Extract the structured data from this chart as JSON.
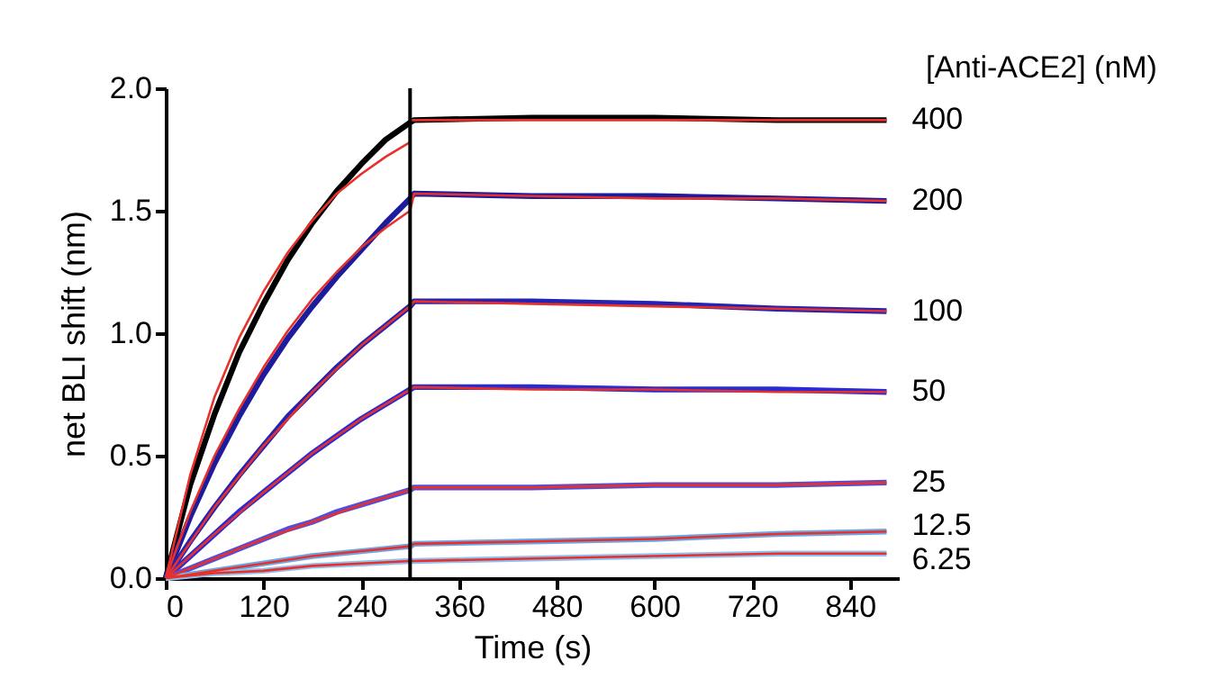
{
  "chart_data": {
    "type": "line",
    "xlabel": "Time (s)",
    "ylabel": "net BLI shift (nm)",
    "legend_title": "[Anti-ACE2] (nM)",
    "xlim": [
      0,
      900
    ],
    "xticks": [
      0,
      120,
      240,
      360,
      480,
      600,
      720,
      840
    ],
    "ylim": [
      0,
      2.0
    ],
    "yticks": [
      {
        "value": 0,
        "label": "0.0"
      },
      0.5,
      {
        "value": 1,
        "label": "1.0"
      },
      1.5,
      {
        "value": 2,
        "label": "2.0"
      }
    ],
    "grid": false,
    "marker": "none",
    "line_style": "solid",
    "ref_lines": [
      {
        "axis": "x",
        "value": 300,
        "color": "#000000"
      }
    ],
    "series": [
      {
        "name": "400",
        "color": "#000000",
        "x": [
          0,
          30,
          60,
          90,
          120,
          150,
          180,
          210,
          240,
          270,
          300,
          305,
          450,
          600,
          750,
          885
        ],
        "values": [
          0,
          0.38,
          0.67,
          0.92,
          1.12,
          1.3,
          1.45,
          1.58,
          1.69,
          1.79,
          1.86,
          1.87,
          1.88,
          1.88,
          1.87,
          1.87
        ]
      },
      {
        "name": "200",
        "color": "#1c1c9c",
        "x": [
          0,
          30,
          60,
          90,
          120,
          150,
          180,
          210,
          240,
          270,
          300,
          305,
          450,
          600,
          750,
          885
        ],
        "values": [
          0,
          0.25,
          0.47,
          0.66,
          0.83,
          0.98,
          1.11,
          1.23,
          1.34,
          1.45,
          1.55,
          1.57,
          1.56,
          1.56,
          1.55,
          1.54
        ]
      },
      {
        "name": "100",
        "color": "#2424b4",
        "x": [
          0,
          30,
          60,
          90,
          120,
          150,
          180,
          210,
          240,
          270,
          300,
          305,
          450,
          600,
          750,
          885
        ],
        "values": [
          0,
          0.15,
          0.29,
          0.42,
          0.54,
          0.66,
          0.76,
          0.86,
          0.95,
          1.03,
          1.11,
          1.13,
          1.13,
          1.12,
          1.1,
          1.09
        ]
      },
      {
        "name": "50",
        "color": "#2b2bd4",
        "x": [
          0,
          30,
          60,
          90,
          120,
          150,
          180,
          210,
          240,
          270,
          300,
          305,
          450,
          600,
          750,
          885
        ],
        "values": [
          0,
          0.09,
          0.18,
          0.27,
          0.35,
          0.43,
          0.51,
          0.58,
          0.65,
          0.71,
          0.77,
          0.78,
          0.78,
          0.77,
          0.77,
          0.76
        ]
      },
      {
        "name": "25",
        "color": "#5050dc",
        "x": [
          0,
          30,
          60,
          90,
          120,
          150,
          180,
          210,
          240,
          270,
          300,
          305,
          450,
          600,
          750,
          885
        ],
        "values": [
          0,
          0.04,
          0.08,
          0.12,
          0.16,
          0.2,
          0.23,
          0.27,
          0.3,
          0.33,
          0.36,
          0.37,
          0.37,
          0.38,
          0.38,
          0.39
        ]
      },
      {
        "name": "12.5",
        "color": "#6aa6e6",
        "x": [
          0,
          60,
          120,
          180,
          240,
          300,
          305,
          450,
          600,
          750,
          885
        ],
        "values": [
          0,
          0.03,
          0.06,
          0.09,
          0.11,
          0.13,
          0.14,
          0.15,
          0.16,
          0.18,
          0.19
        ]
      },
      {
        "name": "6.25",
        "color": "#8fc0f0",
        "x": [
          0,
          60,
          120,
          180,
          240,
          300,
          305,
          450,
          600,
          750,
          885
        ],
        "values": [
          0,
          0.02,
          0.03,
          0.05,
          0.06,
          0.07,
          0.07,
          0.08,
          0.09,
          0.1,
          0.1
        ]
      },
      {
        "color": "#e8302a",
        "x": [
          0,
          30,
          60,
          90,
          120,
          150,
          180,
          210,
          240,
          270,
          300
        ],
        "values": [
          0,
          0.42,
          0.74,
          0.98,
          1.17,
          1.33,
          1.46,
          1.57,
          1.65,
          1.72,
          1.78
        ]
      },
      {
        "color": "#e8302a",
        "x": [
          300,
          450,
          600,
          750,
          885
        ],
        "values": [
          1.87,
          1.87,
          1.87,
          1.87,
          1.87
        ]
      },
      {
        "color": "#e8302a",
        "x": [
          0,
          30,
          60,
          90,
          120,
          150,
          180,
          210,
          240,
          270,
          300,
          305,
          450,
          600,
          750,
          885
        ],
        "values": [
          0,
          0.27,
          0.5,
          0.69,
          0.86,
          1.01,
          1.14,
          1.25,
          1.35,
          1.43,
          1.5,
          1.57,
          1.56,
          1.55,
          1.55,
          1.54
        ]
      },
      {
        "color": "#e8302a",
        "x": [
          0,
          60,
          120,
          180,
          240,
          300,
          305,
          450,
          600,
          750,
          885
        ],
        "values": [
          0,
          0.29,
          0.54,
          0.76,
          0.95,
          1.11,
          1.13,
          1.12,
          1.11,
          1.1,
          1.09
        ]
      },
      {
        "color": "#e8302a",
        "x": [
          0,
          60,
          120,
          180,
          240,
          300,
          305,
          450,
          600,
          750,
          885
        ],
        "values": [
          0,
          0.18,
          0.35,
          0.51,
          0.65,
          0.77,
          0.78,
          0.77,
          0.77,
          0.76,
          0.76
        ]
      },
      {
        "color": "#e8302a",
        "x": [
          0,
          60,
          120,
          180,
          240,
          300,
          305,
          450,
          600,
          750,
          885
        ],
        "values": [
          0,
          0.08,
          0.16,
          0.23,
          0.3,
          0.36,
          0.37,
          0.37,
          0.38,
          0.38,
          0.39
        ]
      },
      {
        "color": "#e8302a",
        "x": [
          0,
          60,
          120,
          180,
          240,
          300,
          305,
          450,
          600,
          750,
          885
        ],
        "values": [
          0,
          0.03,
          0.06,
          0.09,
          0.11,
          0.13,
          0.14,
          0.15,
          0.16,
          0.18,
          0.19
        ]
      },
      {
        "color": "#e8302a",
        "x": [
          0,
          60,
          120,
          180,
          240,
          300,
          305,
          450,
          600,
          750,
          885
        ],
        "values": [
          0,
          0.02,
          0.03,
          0.05,
          0.06,
          0.07,
          0.07,
          0.08,
          0.09,
          0.1,
          0.1
        ]
      }
    ]
  }
}
